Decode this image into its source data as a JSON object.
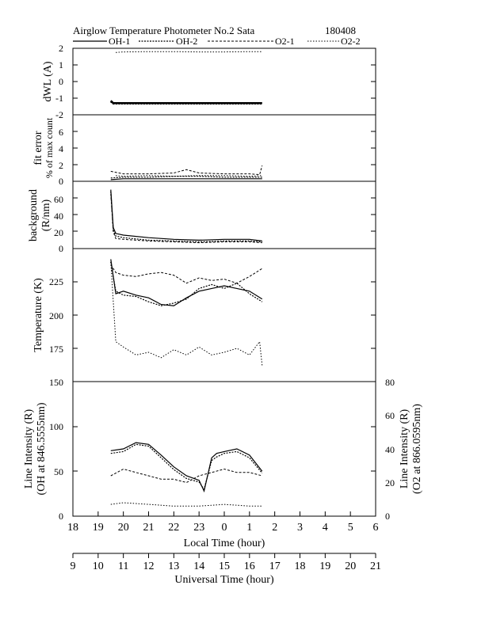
{
  "header": {
    "title": "Airglow Temperature Photometer No.2  Sata",
    "date": "180408"
  },
  "legend": [
    {
      "label": "OH-1",
      "dash": "",
      "width": 1.2
    },
    {
      "label": "OH-2",
      "dash": "2,1.5",
      "width": 1.2
    },
    {
      "label": "O2-1",
      "dash": "3,2",
      "width": 1
    },
    {
      "label": "O2-2",
      "dash": "1.5,2",
      "width": 1
    }
  ],
  "axes": {
    "local_time_label": "Local Time (hour)",
    "universal_time_label": "Universal Time (hour)",
    "local_ticks": [
      "18",
      "19",
      "20",
      "21",
      "22",
      "23",
      "0",
      "1",
      "2",
      "3",
      "4",
      "5",
      "6"
    ],
    "ut_ticks": [
      "9",
      "10",
      "11",
      "12",
      "13",
      "14",
      "15",
      "16",
      "17",
      "18",
      "19",
      "20",
      "21"
    ]
  },
  "chart_data": [
    {
      "type": "line",
      "ylabel": "dWL (A)",
      "ylim": [
        -2,
        2
      ],
      "yticks": [
        "2",
        "1",
        "0",
        "-1",
        "-2"
      ],
      "series": [
        {
          "name": "OH-1",
          "x": [
            19.5,
            19.6,
            20,
            21,
            22,
            23,
            0,
            1,
            1.5
          ],
          "values": [
            -1.15,
            -1.3,
            -1.3,
            -1.3,
            -1.3,
            -1.3,
            -1.3,
            -1.3,
            -1.3
          ]
        },
        {
          "name": "OH-2",
          "x": [
            19.5,
            19.6,
            20,
            21,
            22,
            23,
            0,
            1,
            1.5
          ],
          "values": [
            -1.2,
            -1.32,
            -1.32,
            -1.32,
            -1.32,
            -1.32,
            -1.32,
            -1.32,
            -1.32
          ]
        },
        {
          "name": "O2-2",
          "x": [
            19.7,
            20,
            21,
            22,
            23,
            0,
            1,
            1.5
          ],
          "values": [
            1.75,
            1.78,
            1.8,
            1.8,
            1.78,
            1.78,
            1.8,
            1.8
          ]
        }
      ]
    },
    {
      "type": "line",
      "ylabel": [
        "fit error",
        "% of max count"
      ],
      "ylim": [
        0,
        8
      ],
      "yticks": [
        "6",
        "4",
        "2",
        "0"
      ],
      "series": [
        {
          "name": "OH-1",
          "x": [
            19.5,
            20,
            21,
            22,
            23,
            0,
            1,
            1.5
          ],
          "values": [
            0.2,
            0.3,
            0.3,
            0.3,
            0.3,
            0.3,
            0.3,
            0.3
          ]
        },
        {
          "name": "OH-2",
          "x": [
            19.5,
            20,
            21,
            22,
            23,
            0,
            1,
            1.5
          ],
          "values": [
            0.4,
            0.5,
            0.5,
            0.6,
            0.6,
            0.5,
            0.5,
            0.5
          ]
        },
        {
          "name": "O2-1",
          "x": [
            19.5,
            20,
            21,
            22,
            22.5,
            23,
            0,
            1,
            1.4,
            1.5
          ],
          "values": [
            1.2,
            0.9,
            0.9,
            1.0,
            1.4,
            1.0,
            0.9,
            0.9,
            0.8,
            1.9
          ]
        },
        {
          "name": "O2-2",
          "x": [
            19.7,
            20,
            21,
            22,
            23,
            0,
            1,
            1.5
          ],
          "values": [
            0.7,
            0.6,
            0.7,
            0.6,
            0.7,
            0.7,
            0.6,
            0.7
          ]
        }
      ]
    },
    {
      "type": "line",
      "ylabel": [
        "background",
        "(R/nm)"
      ],
      "ylim": [
        0,
        80
      ],
      "yticks": [
        "60",
        "40",
        "20",
        "0"
      ],
      "series": [
        {
          "name": "OH-1",
          "x": [
            19.5,
            19.6,
            19.7,
            20,
            21,
            22,
            23,
            0,
            1,
            1.5
          ],
          "values": [
            70,
            25,
            18,
            16,
            13,
            11,
            10,
            11,
            11,
            9
          ]
        },
        {
          "name": "OH-2",
          "x": [
            19.5,
            19.6,
            19.7,
            20,
            21,
            22,
            23,
            0,
            1,
            1.5
          ],
          "values": [
            68,
            22,
            15,
            13,
            10,
            9,
            8,
            9,
            9,
            8
          ]
        },
        {
          "name": "O2-1",
          "x": [
            19.5,
            19.6,
            19.7,
            20,
            21,
            22,
            23,
            0,
            1,
            1.5
          ],
          "values": [
            65,
            20,
            12,
            11,
            9,
            8,
            7,
            8,
            8,
            7
          ]
        }
      ]
    },
    {
      "type": "line",
      "ylabel": "Temperature (K)",
      "ylim": [
        150,
        250
      ],
      "yticks": [
        "225",
        "200",
        "175"
      ],
      "series": [
        {
          "name": "OH-1",
          "x": [
            19.5,
            19.7,
            20,
            20.5,
            21,
            21.5,
            22,
            22.5,
            23,
            23.5,
            0,
            0.5,
            1,
            1.5
          ],
          "values": [
            242,
            216,
            218,
            215,
            213,
            208,
            207,
            213,
            218,
            220,
            222,
            220,
            218,
            212
          ]
        },
        {
          "name": "OH-2",
          "x": [
            19.5,
            19.7,
            20,
            20.5,
            21,
            21.5,
            22,
            22.5,
            23,
            23.5,
            0,
            0.5,
            1,
            1.5
          ],
          "values": [
            240,
            218,
            215,
            214,
            210,
            207,
            209,
            212,
            220,
            223,
            220,
            224,
            216,
            210
          ]
        },
        {
          "name": "O2-1",
          "x": [
            19.5,
            19.7,
            20,
            20.5,
            21,
            21.5,
            22,
            22.5,
            23,
            23.5,
            0,
            0.5,
            1,
            1.5
          ],
          "values": [
            238,
            232,
            230,
            229,
            231,
            232,
            230,
            224,
            228,
            226,
            227,
            224,
            229,
            235
          ]
        },
        {
          "name": "O2-2",
          "x": [
            19.5,
            19.7,
            20,
            20.5,
            21,
            21.5,
            22,
            22.5,
            23,
            23.5,
            0,
            0.5,
            1,
            1.4,
            1.5
          ],
          "values": [
            240,
            180,
            176,
            170,
            172,
            168,
            174,
            170,
            176,
            170,
            172,
            175,
            170,
            180,
            162
          ]
        }
      ]
    },
    {
      "type": "line",
      "ylabel": [
        "Line Intensity (R)",
        "(OH at 846.5555nm)"
      ],
      "ylabel_right": [
        "Line Intensity (R)",
        "(O2 at 866.0595nm)"
      ],
      "ylim": [
        0,
        150
      ],
      "ylim_right": [
        0,
        80
      ],
      "yticks": [
        "150",
        "100",
        "50",
        "0"
      ],
      "yticks_right": [
        "80",
        "60",
        "40",
        "20",
        "0"
      ],
      "series": [
        {
          "name": "OH-1",
          "axis": "left",
          "x": [
            19.5,
            20,
            20.5,
            21,
            21.5,
            22,
            22.5,
            23,
            23.2,
            23.5,
            23.7,
            0,
            0.5,
            1,
            1.5
          ],
          "values": [
            73,
            75,
            82,
            80,
            68,
            55,
            45,
            40,
            28,
            65,
            70,
            72,
            75,
            68,
            50
          ]
        },
        {
          "name": "OH-2",
          "axis": "left",
          "x": [
            19.5,
            20,
            20.5,
            21,
            21.5,
            22,
            22.5,
            23,
            23.2,
            23.5,
            23.7,
            0,
            0.5,
            1,
            1.5
          ],
          "values": [
            70,
            72,
            80,
            78,
            65,
            52,
            42,
            38,
            30,
            62,
            66,
            70,
            72,
            65,
            48
          ]
        },
        {
          "name": "O2-1",
          "axis": "right",
          "x": [
            19.5,
            20,
            20.5,
            21,
            21.5,
            22,
            22.5,
            23,
            23.5,
            0,
            0.5,
            1,
            1.5
          ],
          "values": [
            24,
            28,
            26,
            24,
            22,
            22,
            20,
            24,
            26,
            28,
            26,
            26,
            24
          ]
        },
        {
          "name": "O2-2",
          "axis": "right",
          "x": [
            19.5,
            20,
            21,
            22,
            23,
            0,
            1,
            1.5
          ],
          "values": [
            7,
            8,
            7,
            6,
            6,
            7,
            6,
            6
          ]
        }
      ]
    }
  ]
}
